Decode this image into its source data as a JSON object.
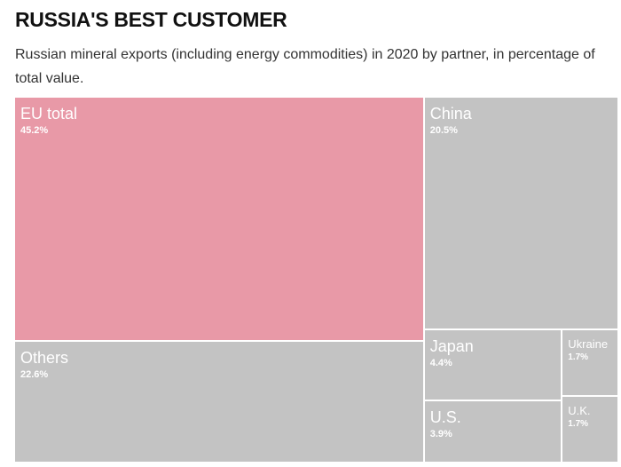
{
  "header": {
    "title": "RUSSIA'S BEST CUSTOMER",
    "subtitle": "Russian mineral exports (including energy commodities) in 2020 by partner, in percentage of total value."
  },
  "colors": {
    "highlight": "#e899a7",
    "default": "#c3c3c3"
  },
  "chart_data": {
    "type": "treemap",
    "unit": "%",
    "items": [
      {
        "name": "EU total",
        "value": 45.2,
        "value_label": "45.2%",
        "highlight": true
      },
      {
        "name": "Others",
        "value": 22.6,
        "value_label": "22.6%",
        "highlight": false
      },
      {
        "name": "China",
        "value": 20.5,
        "value_label": "20.5%",
        "highlight": false
      },
      {
        "name": "Japan",
        "value": 4.4,
        "value_label": "4.4%",
        "highlight": false
      },
      {
        "name": "U.S.",
        "value": 3.9,
        "value_label": "3.9%",
        "highlight": false
      },
      {
        "name": "Ukraine",
        "value": 1.7,
        "value_label": "1.7%",
        "highlight": false
      },
      {
        "name": "U.K.",
        "value": 1.7,
        "value_label": "1.7%",
        "highlight": false
      }
    ]
  }
}
